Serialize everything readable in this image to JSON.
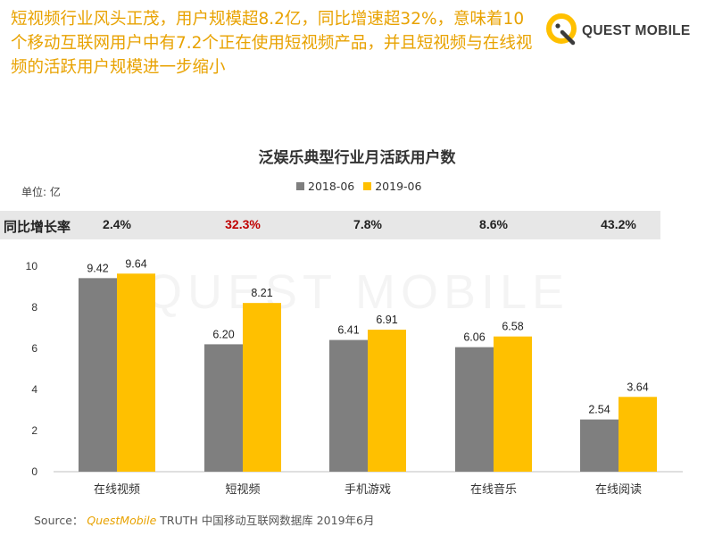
{
  "headline": "短视频行业风头正茂，用户规模超8.2亿，同比增速超32%，意味着10个移动互联网用户中有7.2个正在使用短视频产品，并且短视频与在线视频的活跃用户规模进一步缩小",
  "logo": {
    "text": "QUEST MOBILE",
    "watermark": "QUEST MOBILE"
  },
  "chart_data": {
    "type": "bar",
    "title": "泛娱乐典型行业月活跃用户数",
    "unit_label": "单位: 亿",
    "categories": [
      "在线视频",
      "短视频",
      "手机游戏",
      "在线音乐",
      "在线阅读"
    ],
    "series": [
      {
        "name": "2018-06",
        "values": [
          9.42,
          6.2,
          6.41,
          6.06,
          2.54
        ],
        "color": "#7f7f7f"
      },
      {
        "name": "2019-06",
        "values": [
          9.64,
          8.21,
          6.91,
          6.58,
          3.64
        ],
        "color": "#ffc000"
      }
    ],
    "value_labels": {
      "2018-06": [
        "9.42",
        "6.20",
        "6.41",
        "6.06",
        "2.54"
      ],
      "2019-06": [
        "9.64",
        "8.21",
        "6.91",
        "6.58",
        "3.64"
      ]
    },
    "yticks": [
      "0",
      "2",
      "4",
      "6",
      "8",
      "10"
    ],
    "ylim": [
      0,
      10
    ],
    "growth": {
      "label": "同比增长率",
      "values": [
        "2.4%",
        "32.3%",
        "7.8%",
        "8.6%",
        "43.2%"
      ],
      "highlight_color": "#c00000",
      "highlight_index": 1
    },
    "legend_position": "top-center",
    "grid": false
  },
  "source": {
    "prefix": "Source：",
    "brand": "QuestMobile",
    "rest": " TRUTH 中国移动互联网数据库 2019年6月"
  },
  "colors": {
    "accent": "#ffc000",
    "headline": "#e8a200",
    "band": "#e7e7e7"
  }
}
